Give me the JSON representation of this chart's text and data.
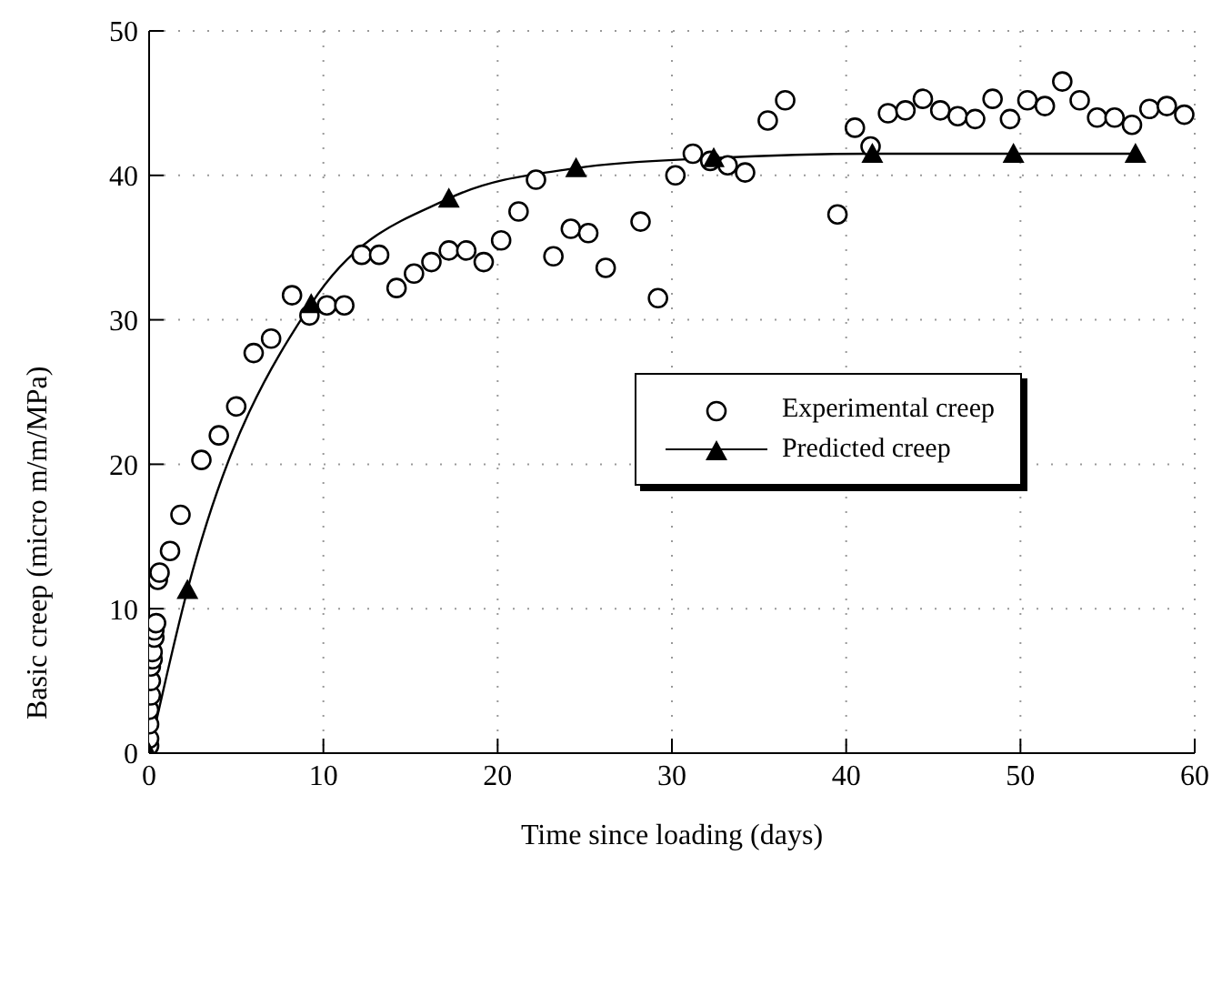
{
  "chart_data": {
    "type": "scatter",
    "xlabel": "Time since loading (days)",
    "ylabel": "Basic creep (micro m/m/MPa)",
    "xlim": [
      0,
      60
    ],
    "ylim": [
      0,
      50
    ],
    "xticks": [
      0,
      10,
      20,
      30,
      40,
      50,
      60
    ],
    "yticks": [
      0,
      10,
      20,
      30,
      40,
      50
    ],
    "grid": true,
    "legend": "right",
    "series": [
      {
        "name": "Experimental creep",
        "marker": "circle",
        "color": "#000000",
        "x": [
          0,
          0,
          0,
          0,
          0.1,
          0.1,
          0.1,
          0.2,
          0.2,
          0.3,
          0.3,
          0.4,
          0.5,
          0.6,
          1.2,
          1.8,
          3,
          4,
          5,
          6,
          7,
          8.2,
          9.2,
          10.2,
          11.2,
          12.2,
          13.2,
          14.2,
          15.2,
          16.2,
          17.2,
          18.2,
          19.2,
          20.2,
          21.2,
          22.2,
          23.2,
          24.2,
          25.2,
          26.2,
          28.2,
          29.2,
          30.2,
          31.2,
          32.2,
          33.2,
          34.2,
          35.5,
          36.5,
          39.5,
          40.5,
          41.4,
          42.4,
          43.4,
          44.4,
          45.4,
          46.4,
          47.4,
          48.4,
          49.4,
          50.4,
          51.4,
          52.4,
          53.4,
          54.4,
          55.4,
          56.4,
          57.4,
          58.4,
          59.4
        ],
        "values": [
          0.5,
          1,
          2,
          3,
          4,
          5,
          6,
          6.5,
          7,
          8,
          8.5,
          9,
          12,
          12.5,
          14,
          16.5,
          20.3,
          22,
          24,
          27.7,
          28.7,
          31.7,
          30.3,
          31,
          31,
          34.5,
          34.5,
          32.2,
          33.2,
          34,
          34.8,
          34.8,
          34,
          35.5,
          37.5,
          39.7,
          34.4,
          36.3,
          36,
          33.6,
          36.8,
          31.5,
          40,
          41.5,
          41,
          40.7,
          40.2,
          43.8,
          45.2,
          37.3,
          43.3,
          42,
          44.3,
          44.5,
          45.3,
          44.5,
          44.1,
          43.9,
          45.3,
          43.9,
          45.2,
          44.8,
          46.5,
          45.2,
          44,
          44,
          43.5,
          44.6,
          44.8,
          44.2
        ]
      },
      {
        "name": "Predicted creep",
        "type": "line",
        "marker": "triangle",
        "color": "#000000",
        "x": [
          0,
          2.2,
          9.3,
          17.2,
          24.5,
          32.4,
          41.5,
          49.6,
          56.6
        ],
        "values": [
          0,
          11.3,
          31.1,
          38.4,
          40.5,
          41.2,
          41.5,
          41.5,
          41.5
        ]
      }
    ]
  }
}
